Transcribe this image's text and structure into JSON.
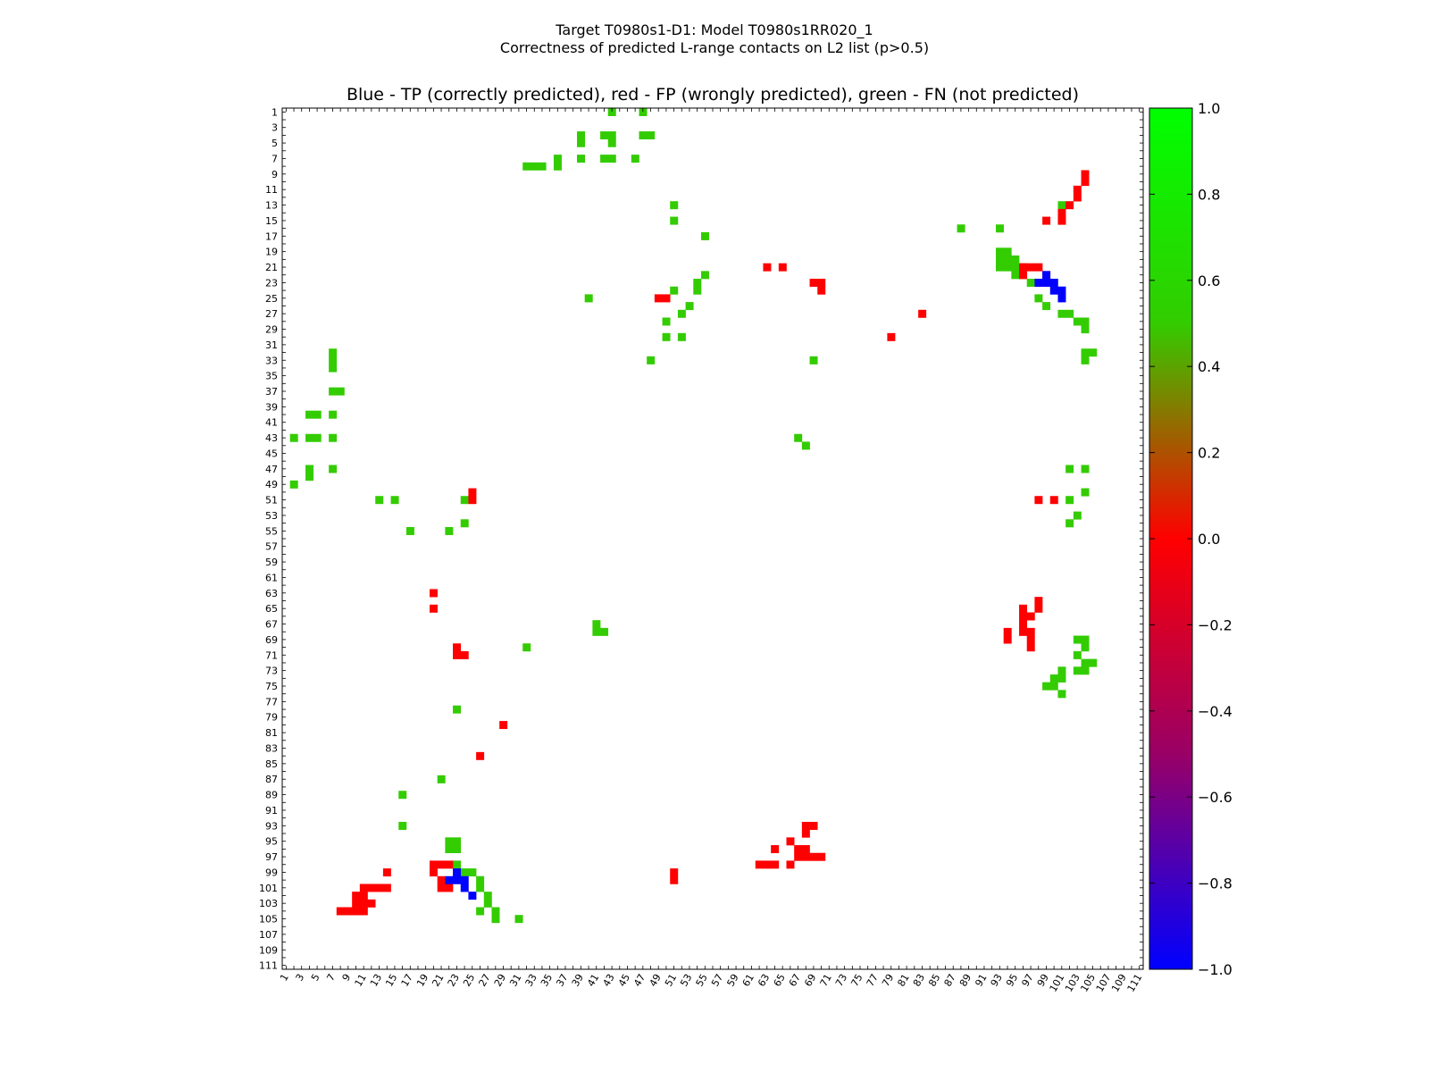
{
  "suptitle_line1": "Target T0980s1-D1: Model T0980s1RR020_1",
  "suptitle_line2": "Correctness of predicted L-range contacts on L2 list (p>0.5)",
  "chart_data": {
    "type": "heatmap",
    "title": "Blue - TP (correctly predicted), red - FP (wrongly predicted), green - FN (not predicted)",
    "xlabel": "",
    "ylabel": "",
    "xlim": [
      1,
      111
    ],
    "ylim": [
      111,
      1
    ],
    "x_ticks": [
      "1",
      "3",
      "5",
      "7",
      "9",
      "11",
      "13",
      "15",
      "17",
      "19",
      "21",
      "23",
      "25",
      "27",
      "29",
      "31",
      "33",
      "35",
      "37",
      "39",
      "41",
      "43",
      "45",
      "47",
      "49",
      "51",
      "53",
      "55",
      "57",
      "59",
      "61",
      "63",
      "65",
      "67",
      "69",
      "71",
      "73",
      "75",
      "77",
      "79",
      "81",
      "83",
      "85",
      "87",
      "89",
      "91",
      "93",
      "95",
      "97",
      "99",
      "101",
      "103",
      "105",
      "107",
      "109",
      "111"
    ],
    "y_ticks": [
      "1",
      "3",
      "5",
      "7",
      "9",
      "11",
      "13",
      "15",
      "17",
      "19",
      "21",
      "23",
      "25",
      "27",
      "29",
      "31",
      "33",
      "35",
      "37",
      "39",
      "41",
      "43",
      "45",
      "47",
      "49",
      "51",
      "53",
      "55",
      "57",
      "59",
      "61",
      "63",
      "65",
      "67",
      "69",
      "71",
      "73",
      "75",
      "77",
      "79",
      "81",
      "83",
      "85",
      "87",
      "89",
      "91",
      "93",
      "95",
      "97",
      "99",
      "101",
      "103",
      "105",
      "107",
      "109",
      "111"
    ],
    "colorbar": {
      "ticks": [
        "1.0",
        "0.8",
        "0.6",
        "0.4",
        "0.2",
        "0.0",
        "−0.2",
        "−0.4",
        "−0.6",
        "−0.8",
        "−1.0"
      ],
      "range": [
        -1.0,
        1.0
      ],
      "colors": {
        "top": "#00ff00",
        "upper": "#33cc00",
        "mid": "#ff0000",
        "lower": "#990066",
        "bottom": "#0000ff"
      }
    },
    "colors": {
      "TP": "#0000ff",
      "FP": "#ff0000",
      "FN": "#33cc00"
    },
    "legend": [
      "TP",
      "FP",
      "FN"
    ],
    "fn": [
      [
        1,
        43
      ],
      [
        1,
        47
      ],
      [
        4,
        39
      ],
      [
        4,
        42
      ],
      [
        4,
        43
      ],
      [
        4,
        47
      ],
      [
        4,
        48
      ],
      [
        5,
        39
      ],
      [
        5,
        43
      ],
      [
        7,
        36
      ],
      [
        7,
        39
      ],
      [
        7,
        42
      ],
      [
        7,
        43
      ],
      [
        7,
        46
      ],
      [
        8,
        32
      ],
      [
        8,
        33
      ],
      [
        8,
        34
      ],
      [
        8,
        36
      ],
      [
        13,
        51
      ],
      [
        15,
        51
      ],
      [
        17,
        55
      ],
      [
        22,
        55
      ],
      [
        23,
        54
      ],
      [
        24,
        51
      ],
      [
        25,
        40
      ],
      [
        24,
        54
      ],
      [
        26,
        53
      ],
      [
        27,
        52
      ],
      [
        28,
        50
      ],
      [
        30,
        52
      ],
      [
        30,
        50
      ],
      [
        33,
        48
      ],
      [
        32,
        7
      ],
      [
        33,
        7
      ],
      [
        34,
        7
      ],
      [
        37,
        7
      ],
      [
        37,
        8
      ],
      [
        40,
        4
      ],
      [
        40,
        5
      ],
      [
        40,
        7
      ],
      [
        43,
        2
      ],
      [
        43,
        4
      ],
      [
        43,
        5
      ],
      [
        43,
        7
      ],
      [
        47,
        4
      ],
      [
        47,
        7
      ],
      [
        48,
        4
      ],
      [
        49,
        2
      ],
      [
        51,
        13
      ],
      [
        51,
        15
      ],
      [
        51,
        24
      ],
      [
        54,
        24
      ],
      [
        55,
        17
      ],
      [
        55,
        22
      ],
      [
        67,
        41
      ],
      [
        68,
        41
      ],
      [
        68,
        42
      ],
      [
        70,
        32
      ],
      [
        78,
        23
      ],
      [
        87,
        21
      ],
      [
        89,
        16
      ],
      [
        93,
        16
      ],
      [
        95,
        22
      ],
      [
        95,
        23
      ],
      [
        96,
        22
      ],
      [
        96,
        23
      ],
      [
        98,
        23
      ],
      [
        99,
        24
      ],
      [
        99,
        25
      ],
      [
        100,
        26
      ],
      [
        101,
        26
      ],
      [
        102,
        27
      ],
      [
        103,
        27
      ],
      [
        104,
        26
      ],
      [
        104,
        28
      ],
      [
        105,
        28
      ],
      [
        105,
        31
      ],
      [
        15,
        101
      ],
      [
        13,
        101
      ],
      [
        16,
        88
      ],
      [
        16,
        93
      ],
      [
        19,
        93
      ],
      [
        19,
        94
      ],
      [
        20,
        93
      ],
      [
        20,
        94
      ],
      [
        20,
        95
      ],
      [
        21,
        93
      ],
      [
        21,
        94
      ],
      [
        21,
        95
      ],
      [
        21,
        96
      ],
      [
        22,
        95
      ],
      [
        22,
        96
      ],
      [
        23,
        97
      ],
      [
        25,
        98
      ],
      [
        26,
        99
      ],
      [
        27,
        101
      ],
      [
        27,
        102
      ],
      [
        28,
        103
      ],
      [
        28,
        104
      ],
      [
        29,
        104
      ],
      [
        32,
        104
      ],
      [
        33,
        104
      ],
      [
        32,
        105
      ],
      [
        33,
        69
      ],
      [
        43,
        67
      ],
      [
        44,
        68
      ],
      [
        47,
        102
      ],
      [
        47,
        104
      ],
      [
        50,
        104
      ],
      [
        51,
        102
      ],
      [
        53,
        103
      ],
      [
        54,
        102
      ],
      [
        69,
        103
      ],
      [
        69,
        104
      ],
      [
        70,
        104
      ],
      [
        71,
        103
      ],
      [
        72,
        104
      ],
      [
        72,
        105
      ],
      [
        73,
        101
      ],
      [
        73,
        103
      ],
      [
        73,
        104
      ],
      [
        74,
        100
      ],
      [
        74,
        101
      ],
      [
        75,
        99
      ],
      [
        75,
        100
      ],
      [
        76,
        101
      ]
    ],
    "fp": [
      [
        9,
        104
      ],
      [
        10,
        104
      ],
      [
        11,
        103
      ],
      [
        12,
        103
      ],
      [
        13,
        102
      ],
      [
        14,
        101
      ],
      [
        15,
        101
      ],
      [
        15,
        99
      ],
      [
        21,
        63
      ],
      [
        21,
        65
      ],
      [
        21,
        96
      ],
      [
        21,
        97
      ],
      [
        21,
        98
      ],
      [
        22,
        96
      ],
      [
        22,
        99
      ],
      [
        23,
        69
      ],
      [
        23,
        70
      ],
      [
        24,
        70
      ],
      [
        25,
        49
      ],
      [
        25,
        50
      ],
      [
        27,
        83
      ],
      [
        30,
        79
      ],
      [
        50,
        25
      ],
      [
        51,
        25
      ],
      [
        51,
        98
      ],
      [
        51,
        100
      ],
      [
        63,
        20
      ],
      [
        65,
        20
      ],
      [
        64,
        98
      ],
      [
        65,
        98
      ],
      [
        65,
        96
      ],
      [
        66,
        96
      ],
      [
        66,
        97
      ],
      [
        67,
        96
      ],
      [
        68,
        96
      ],
      [
        68,
        94
      ],
      [
        68,
        97
      ],
      [
        69,
        94
      ],
      [
        69,
        97
      ],
      [
        70,
        97
      ],
      [
        70,
        23
      ],
      [
        71,
        23
      ],
      [
        71,
        24
      ],
      [
        80,
        29
      ],
      [
        84,
        26
      ],
      [
        99,
        14
      ],
      [
        99,
        51
      ],
      [
        98,
        20
      ],
      [
        98,
        21
      ],
      [
        98,
        22
      ],
      [
        99,
        20
      ],
      [
        100,
        21
      ],
      [
        100,
        51
      ],
      [
        101,
        21
      ],
      [
        101,
        22
      ],
      [
        101,
        11
      ],
      [
        101,
        12
      ],
      [
        101,
        13
      ],
      [
        101,
        14
      ],
      [
        102,
        10
      ],
      [
        102,
        11
      ],
      [
        103,
        10
      ],
      [
        103,
        11
      ],
      [
        103,
        12
      ],
      [
        104,
        8
      ],
      [
        104,
        9
      ],
      [
        104,
        10
      ],
      [
        104,
        11
      ],
      [
        93,
        68
      ],
      [
        93,
        69
      ],
      [
        94,
        68
      ],
      [
        95,
        66
      ],
      [
        96,
        64
      ],
      [
        96,
        67
      ],
      [
        96,
        68
      ],
      [
        97,
        67
      ],
      [
        97,
        68
      ],
      [
        97,
        69
      ],
      [
        97,
        70
      ],
      [
        98,
        62
      ],
      [
        98,
        63
      ],
      [
        98,
        64
      ],
      [
        98,
        66
      ]
    ],
    "tp": [
      [
        22,
        99
      ],
      [
        23,
        99
      ],
      [
        23,
        100
      ],
      [
        24,
        100
      ],
      [
        25,
        101
      ],
      [
        23,
        98
      ],
      [
        24,
        101
      ],
      [
        99,
        23
      ],
      [
        100,
        22
      ],
      [
        100,
        23
      ],
      [
        100,
        24
      ],
      [
        101,
        24
      ],
      [
        102,
        25
      ]
    ]
  }
}
